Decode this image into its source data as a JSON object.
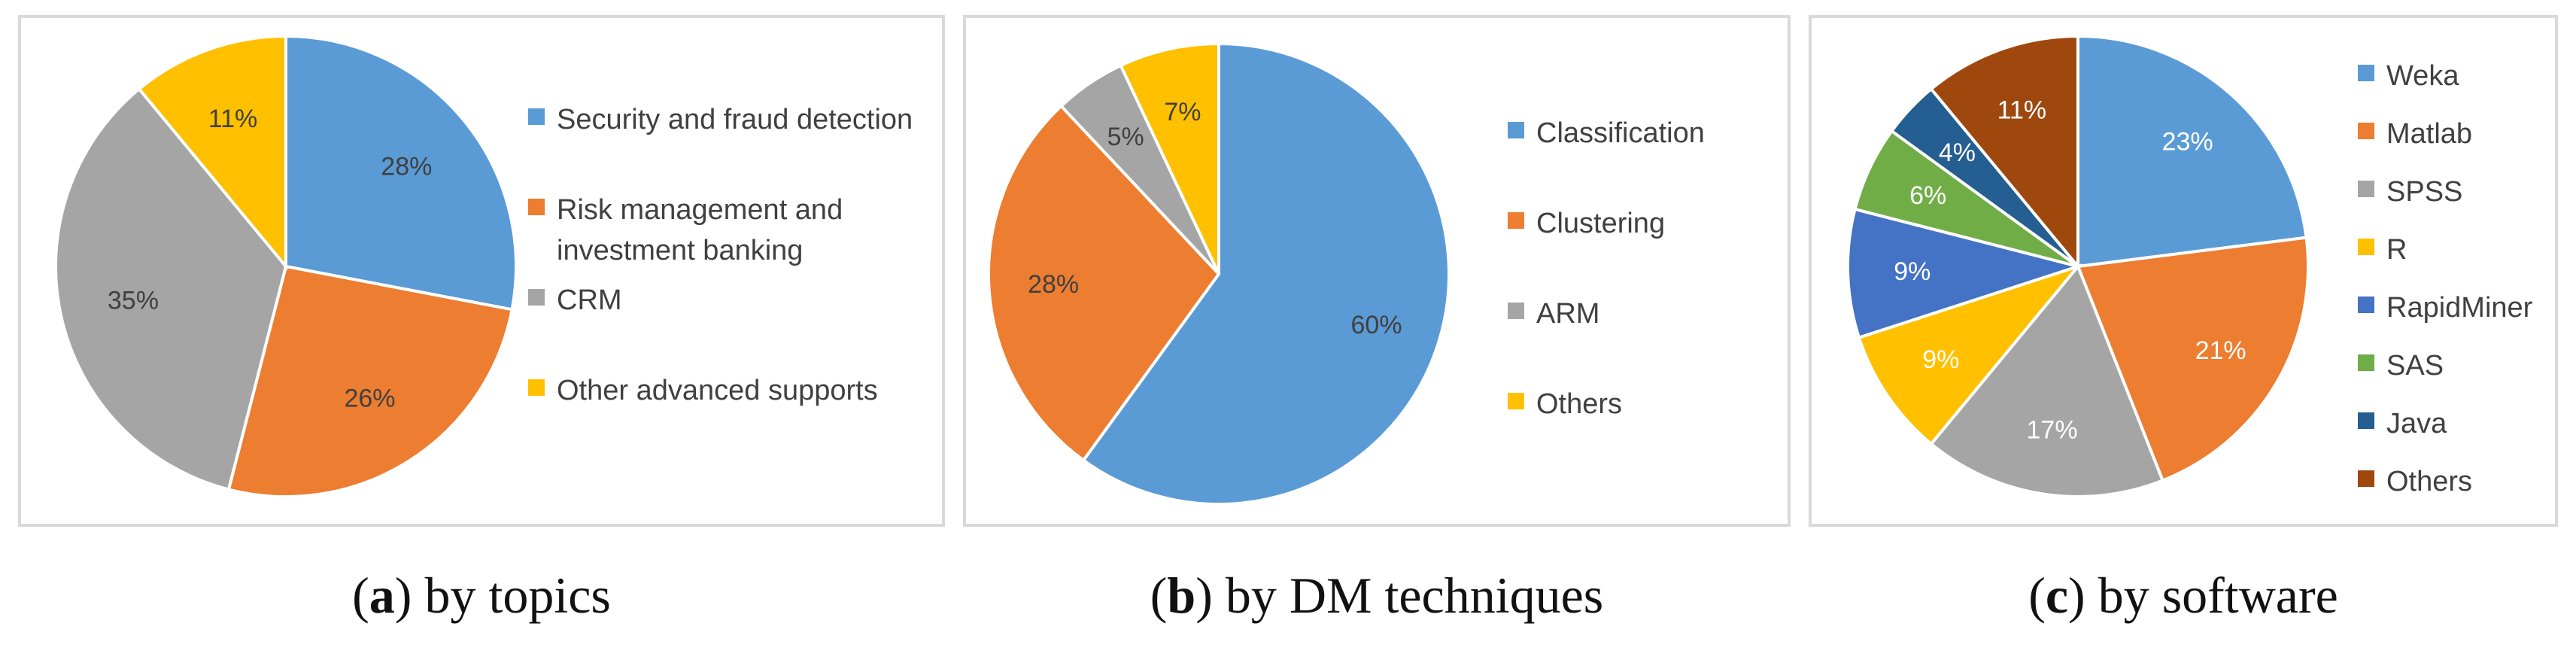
{
  "chart_data": [
    {
      "type": "pie",
      "categories": [
        "Security and fraud detection",
        "Risk management and investment banking",
        "CRM",
        "Other advanced supports"
      ],
      "values": [
        28,
        26,
        35,
        11
      ],
      "labels": [
        "28%",
        "26%",
        "35%",
        "11%"
      ],
      "colors": [
        "#5B9BD5",
        "#ED7D31",
        "#A5A5A5",
        "#FFC000"
      ],
      "label_colors": [
        "#404040",
        "#404040",
        "#404040",
        "#404040"
      ],
      "legend_placement": "right",
      "caption": {
        "letter": "a",
        "text": "by topics"
      }
    },
    {
      "type": "pie",
      "categories": [
        "Classification",
        "Clustering",
        "ARM",
        "Others"
      ],
      "values": [
        60,
        28,
        5,
        7
      ],
      "labels": [
        "60%",
        "28%",
        "5%",
        "7%"
      ],
      "colors": [
        "#5B9BD5",
        "#ED7D31",
        "#A5A5A5",
        "#FFC000"
      ],
      "label_colors": [
        "#404040",
        "#404040",
        "#404040",
        "#404040"
      ],
      "legend_placement": "right",
      "caption": {
        "letter": "b",
        "text": "by DM techniques"
      }
    },
    {
      "type": "pie",
      "categories": [
        "Weka",
        "Matlab",
        "SPSS",
        "R",
        "RapidMiner",
        "SAS",
        "Java",
        "Others"
      ],
      "values": [
        23,
        21,
        17,
        9,
        9,
        6,
        4,
        11
      ],
      "labels": [
        "23%",
        "21%",
        "17%",
        "9%",
        "9%",
        "6%",
        "4%",
        "11%"
      ],
      "colors": [
        "#5B9BD5",
        "#ED7D31",
        "#A5A5A5",
        "#FFC000",
        "#4472C4",
        "#70AD47",
        "#255E91",
        "#9E480E"
      ],
      "label_colors": [
        "#ffffff",
        "#ffffff",
        "#ffffff",
        "#ffffff",
        "#ffffff",
        "#ffffff",
        "#ffffff",
        "#ffffff"
      ],
      "legend_placement": "right",
      "caption": {
        "letter": "c",
        "text": "by software"
      }
    }
  ]
}
